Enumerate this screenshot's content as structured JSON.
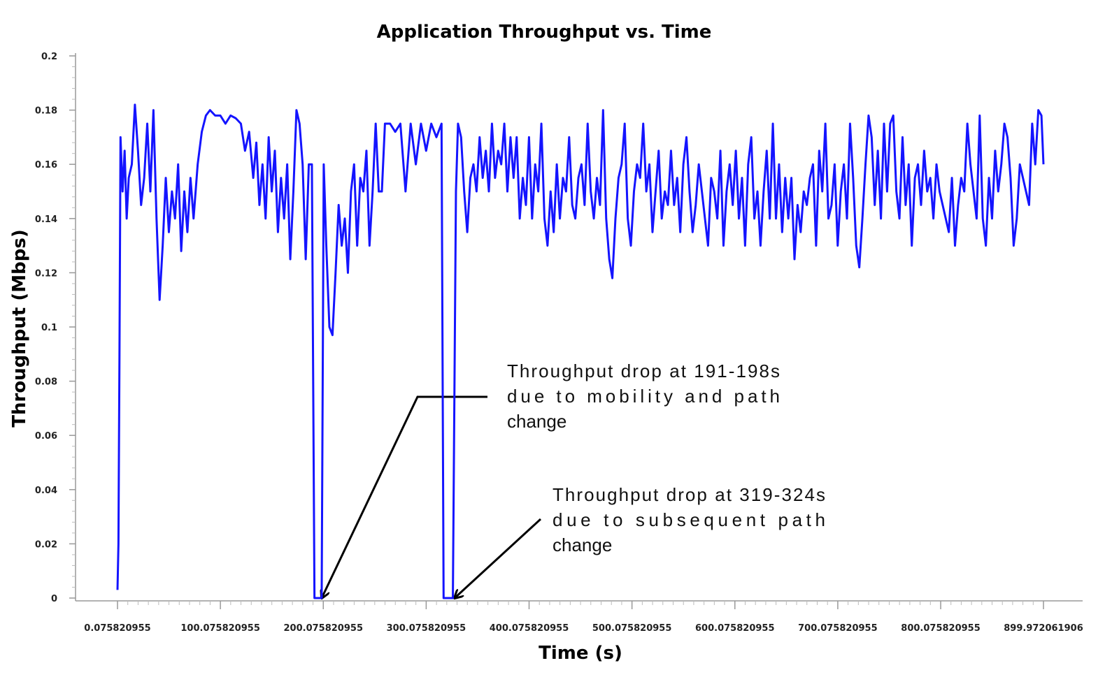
{
  "chart_data": {
    "type": "line",
    "title": "Application Throughput vs. Time",
    "xlabel": "Time (s)",
    "ylabel": "Throughput (Mbps)",
    "color": "#1414ff",
    "xlim": [
      0.075820955,
      899.972061906
    ],
    "ylim": [
      0,
      0.2
    ],
    "xticks": [
      0.075820955,
      100.075820955,
      200.075820955,
      300.075820955,
      400.075820955,
      500.075820955,
      600.075820955,
      700.075820955,
      800.075820955,
      899.972061906
    ],
    "yticks": [
      0,
      0.02,
      0.04,
      0.06,
      0.08,
      0.1,
      0.12,
      0.14,
      0.16,
      0.18,
      0.2
    ],
    "x": [
      0.075820955,
      1,
      2,
      3,
      5,
      7,
      9,
      11,
      14,
      17,
      20,
      23,
      26,
      29,
      32,
      35,
      38,
      41,
      44,
      47,
      50,
      53,
      56,
      59,
      62,
      65,
      68,
      71,
      74,
      78,
      82,
      86,
      90,
      95,
      100,
      105,
      110,
      115,
      120,
      124,
      128,
      132,
      135,
      138,
      141,
      144,
      147,
      150,
      153,
      156,
      159,
      162,
      165,
      168,
      171,
      174,
      177,
      180,
      183,
      186,
      189,
      191.5,
      198.5,
      200.5,
      203,
      206,
      209,
      212,
      215,
      218,
      221,
      224,
      227,
      230,
      233,
      236,
      239,
      242,
      245,
      248,
      251,
      254,
      257,
      260,
      265,
      270,
      275,
      280,
      285,
      290,
      295,
      300,
      305,
      310,
      315,
      317,
      326,
      329,
      331,
      334,
      337,
      340,
      343,
      346,
      349,
      352,
      355,
      358,
      361,
      364,
      367,
      370,
      373,
      376,
      379,
      382,
      385,
      388,
      391,
      394,
      397,
      400,
      403,
      406,
      409,
      412,
      415,
      418,
      421,
      424,
      427,
      430,
      433,
      436,
      439,
      442,
      445,
      448,
      451,
      454,
      457,
      460,
      463,
      466,
      469,
      472,
      475,
      478,
      481,
      484,
      487,
      490,
      493,
      496,
      499,
      502,
      505,
      508,
      511,
      514,
      517,
      520,
      523,
      526,
      529,
      532,
      535,
      538,
      541,
      544,
      547,
      550,
      553,
      556,
      559,
      562,
      565,
      568,
      571,
      574,
      577,
      580,
      583,
      586,
      589,
      592,
      595,
      598,
      601,
      604,
      607,
      610,
      613,
      616,
      619,
      622,
      625,
      628,
      631,
      634,
      637,
      640,
      643,
      646,
      649,
      652,
      655,
      658,
      661,
      664,
      667,
      670,
      673,
      676,
      679,
      682,
      685,
      688,
      691,
      694,
      697,
      700,
      703,
      706,
      709,
      712,
      715,
      718,
      721,
      724,
      727,
      730,
      733,
      736,
      739,
      742,
      745,
      748,
      751,
      754,
      757,
      760,
      763,
      766,
      769,
      772,
      775,
      778,
      781,
      784,
      787,
      790,
      793,
      796,
      799,
      802,
      805,
      808,
      811,
      814,
      817,
      820,
      823,
      826,
      829,
      832,
      835,
      838,
      841,
      844,
      847,
      850,
      853,
      856,
      859,
      862,
      865,
      868,
      871,
      874,
      877,
      880,
      883,
      886,
      889,
      892,
      895,
      898,
      899.972061906
    ],
    "values": [
      0.003,
      0.02,
      0.09,
      0.17,
      0.15,
      0.165,
      0.14,
      0.155,
      0.16,
      0.182,
      0.165,
      0.145,
      0.155,
      0.175,
      0.15,
      0.18,
      0.14,
      0.11,
      0.13,
      0.155,
      0.135,
      0.15,
      0.14,
      0.16,
      0.128,
      0.15,
      0.135,
      0.155,
      0.14,
      0.16,
      0.172,
      0.178,
      0.18,
      0.178,
      0.178,
      0.175,
      0.178,
      0.177,
      0.175,
      0.165,
      0.172,
      0.155,
      0.168,
      0.145,
      0.16,
      0.14,
      0.17,
      0.15,
      0.165,
      0.135,
      0.155,
      0.14,
      0.16,
      0.125,
      0.15,
      0.18,
      0.175,
      0.16,
      0.125,
      0.16,
      0.16,
      0,
      0,
      0.16,
      0.13,
      0.1,
      0.097,
      0.12,
      0.145,
      0.13,
      0.14,
      0.12,
      0.15,
      0.16,
      0.13,
      0.155,
      0.15,
      0.165,
      0.13,
      0.15,
      0.175,
      0.15,
      0.15,
      0.175,
      0.175,
      0.172,
      0.175,
      0.15,
      0.175,
      0.16,
      0.175,
      0.165,
      0.175,
      0.17,
      0.175,
      0,
      0,
      0.15,
      0.175,
      0.17,
      0.15,
      0.135,
      0.155,
      0.16,
      0.15,
      0.17,
      0.155,
      0.165,
      0.15,
      0.175,
      0.155,
      0.165,
      0.16,
      0.175,
      0.15,
      0.17,
      0.155,
      0.17,
      0.14,
      0.155,
      0.145,
      0.17,
      0.14,
      0.16,
      0.15,
      0.175,
      0.14,
      0.13,
      0.15,
      0.135,
      0.16,
      0.14,
      0.155,
      0.15,
      0.17,
      0.145,
      0.14,
      0.155,
      0.16,
      0.145,
      0.175,
      0.15,
      0.14,
      0.155,
      0.145,
      0.18,
      0.14,
      0.125,
      0.118,
      0.14,
      0.155,
      0.16,
      0.175,
      0.14,
      0.13,
      0.15,
      0.16,
      0.155,
      0.175,
      0.15,
      0.16,
      0.135,
      0.15,
      0.165,
      0.14,
      0.15,
      0.145,
      0.165,
      0.145,
      0.155,
      0.135,
      0.16,
      0.17,
      0.15,
      0.135,
      0.145,
      0.16,
      0.15,
      0.14,
      0.13,
      0.155,
      0.15,
      0.14,
      0.165,
      0.13,
      0.15,
      0.16,
      0.145,
      0.165,
      0.14,
      0.155,
      0.13,
      0.16,
      0.17,
      0.14,
      0.15,
      0.13,
      0.15,
      0.165,
      0.14,
      0.175,
      0.14,
      0.16,
      0.135,
      0.155,
      0.14,
      0.155,
      0.125,
      0.145,
      0.135,
      0.15,
      0.145,
      0.155,
      0.16,
      0.13,
      0.165,
      0.15,
      0.175,
      0.14,
      0.145,
      0.16,
      0.13,
      0.15,
      0.16,
      0.14,
      0.175,
      0.155,
      0.13,
      0.122,
      0.14,
      0.16,
      0.178,
      0.17,
      0.145,
      0.165,
      0.14,
      0.175,
      0.15,
      0.175,
      0.178,
      0.15,
      0.14,
      0.17,
      0.145,
      0.16,
      0.13,
      0.155,
      0.16,
      0.145,
      0.165,
      0.15,
      0.155,
      0.14,
      0.16,
      0.15,
      0.145,
      0.14,
      0.135,
      0.155,
      0.13,
      0.145,
      0.155,
      0.15,
      0.175,
      0.16,
      0.15,
      0.14,
      0.178,
      0.14,
      0.13,
      0.155,
      0.14,
      0.165,
      0.15,
      0.16,
      0.175,
      0.17,
      0.155,
      0.13,
      0.14,
      0.16,
      0.155,
      0.15,
      0.145,
      0.175,
      0.16,
      0.18,
      0.178,
      0.16
    ],
    "annotations": [
      {
        "lines": [
          "Throughput drop at 191-198s",
          "due to mobility and path",
          "change"
        ]
      },
      {
        "lines": [
          "Throughput drop at 319-324s",
          "due to subsequent path",
          "change"
        ]
      }
    ]
  }
}
